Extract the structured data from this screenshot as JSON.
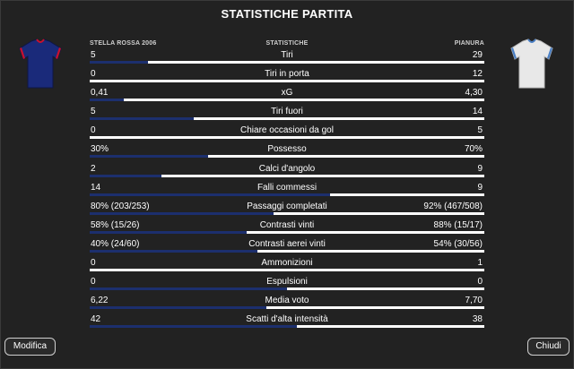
{
  "title": "STATISTICHE PARTITA",
  "home_team": "STELLA ROSSA 2006",
  "away_team": "PIANURA",
  "stats_header": "STATISTICHE",
  "colors": {
    "home_bar": "#1c2f6e",
    "away_bar": "#ffffff",
    "home_shirt": "#1a2a7a",
    "home_trim": "#c8102e",
    "away_shirt": "#e8e8e8",
    "away_trim": "#4a7fc4"
  },
  "stats": [
    {
      "label": "Tiri",
      "home": "5",
      "away": "29",
      "home_share": 0.147
    },
    {
      "label": "Tiri in porta",
      "home": "0",
      "away": "12",
      "home_share": 0.0
    },
    {
      "label": "xG",
      "home": "0,41",
      "away": "4,30",
      "home_share": 0.087
    },
    {
      "label": "Tiri fuori",
      "home": "5",
      "away": "14",
      "home_share": 0.263
    },
    {
      "label": "Chiare occasioni da gol",
      "home": "0",
      "away": "5",
      "home_share": 0.0
    },
    {
      "label": "Possesso",
      "home": "30%",
      "away": "70%",
      "home_share": 0.3
    },
    {
      "label": "Calci d'angolo",
      "home": "2",
      "away": "9",
      "home_share": 0.182
    },
    {
      "label": "Falli commessi",
      "home": "14",
      "away": "9",
      "home_share": 0.609
    },
    {
      "label": "Passaggi completati",
      "home": "80% (203/253)",
      "away": "92% (467/508)",
      "home_share": 0.465
    },
    {
      "label": "Contrasti vinti",
      "home": "58% (15/26)",
      "away": "88% (15/17)",
      "home_share": 0.397
    },
    {
      "label": "Contrasti aerei vinti",
      "home": "40% (24/60)",
      "away": "54% (30/56)",
      "home_share": 0.426
    },
    {
      "label": "Ammonizioni",
      "home": "0",
      "away": "1",
      "home_share": 0.0
    },
    {
      "label": "Espulsioni",
      "home": "0",
      "away": "0",
      "home_share": 0.5
    },
    {
      "label": "Media voto",
      "home": "6,22",
      "away": "7,70",
      "home_share": 0.447
    },
    {
      "label": "Scatti d'alta intensità",
      "home": "42",
      "away": "38",
      "home_share": 0.525
    }
  ],
  "buttons": {
    "edit": "Modifica",
    "close": "Chiudi"
  }
}
